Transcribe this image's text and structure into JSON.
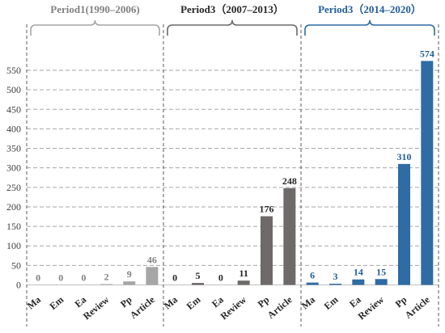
{
  "chart_data": {
    "type": "bar",
    "ylim": [
      0,
      580
    ],
    "yticks": [
      0,
      50,
      100,
      150,
      200,
      250,
      300,
      350,
      400,
      450,
      500,
      550
    ],
    "grid": true,
    "categories": [
      "Ma",
      "Em",
      "Ea",
      "Review",
      "Pp",
      "Article"
    ],
    "panels": [
      {
        "title": "Period1(1990–2006)",
        "color": "#a6a6a6",
        "text_color": "#808080",
        "labels": [
          "0",
          "0",
          "0",
          "2",
          "9",
          "46"
        ],
        "values": [
          0,
          0,
          0,
          2,
          9,
          46
        ]
      },
      {
        "title": "Period3（2007–2013）",
        "color": "#6e6a69",
        "text_color": "#262626",
        "labels": [
          "0",
          "5",
          "0",
          "11",
          "176",
          "248"
        ],
        "values": [
          0,
          5,
          0,
          11,
          176,
          248
        ]
      },
      {
        "title": "Period3（2014–2020）",
        "color": "#2e6ca3",
        "text_color": "#1f5c99",
        "labels": [
          "6",
          "3",
          "14",
          "15",
          "310",
          "574"
        ],
        "values": [
          6,
          3,
          14,
          15,
          310,
          574
        ]
      }
    ]
  }
}
